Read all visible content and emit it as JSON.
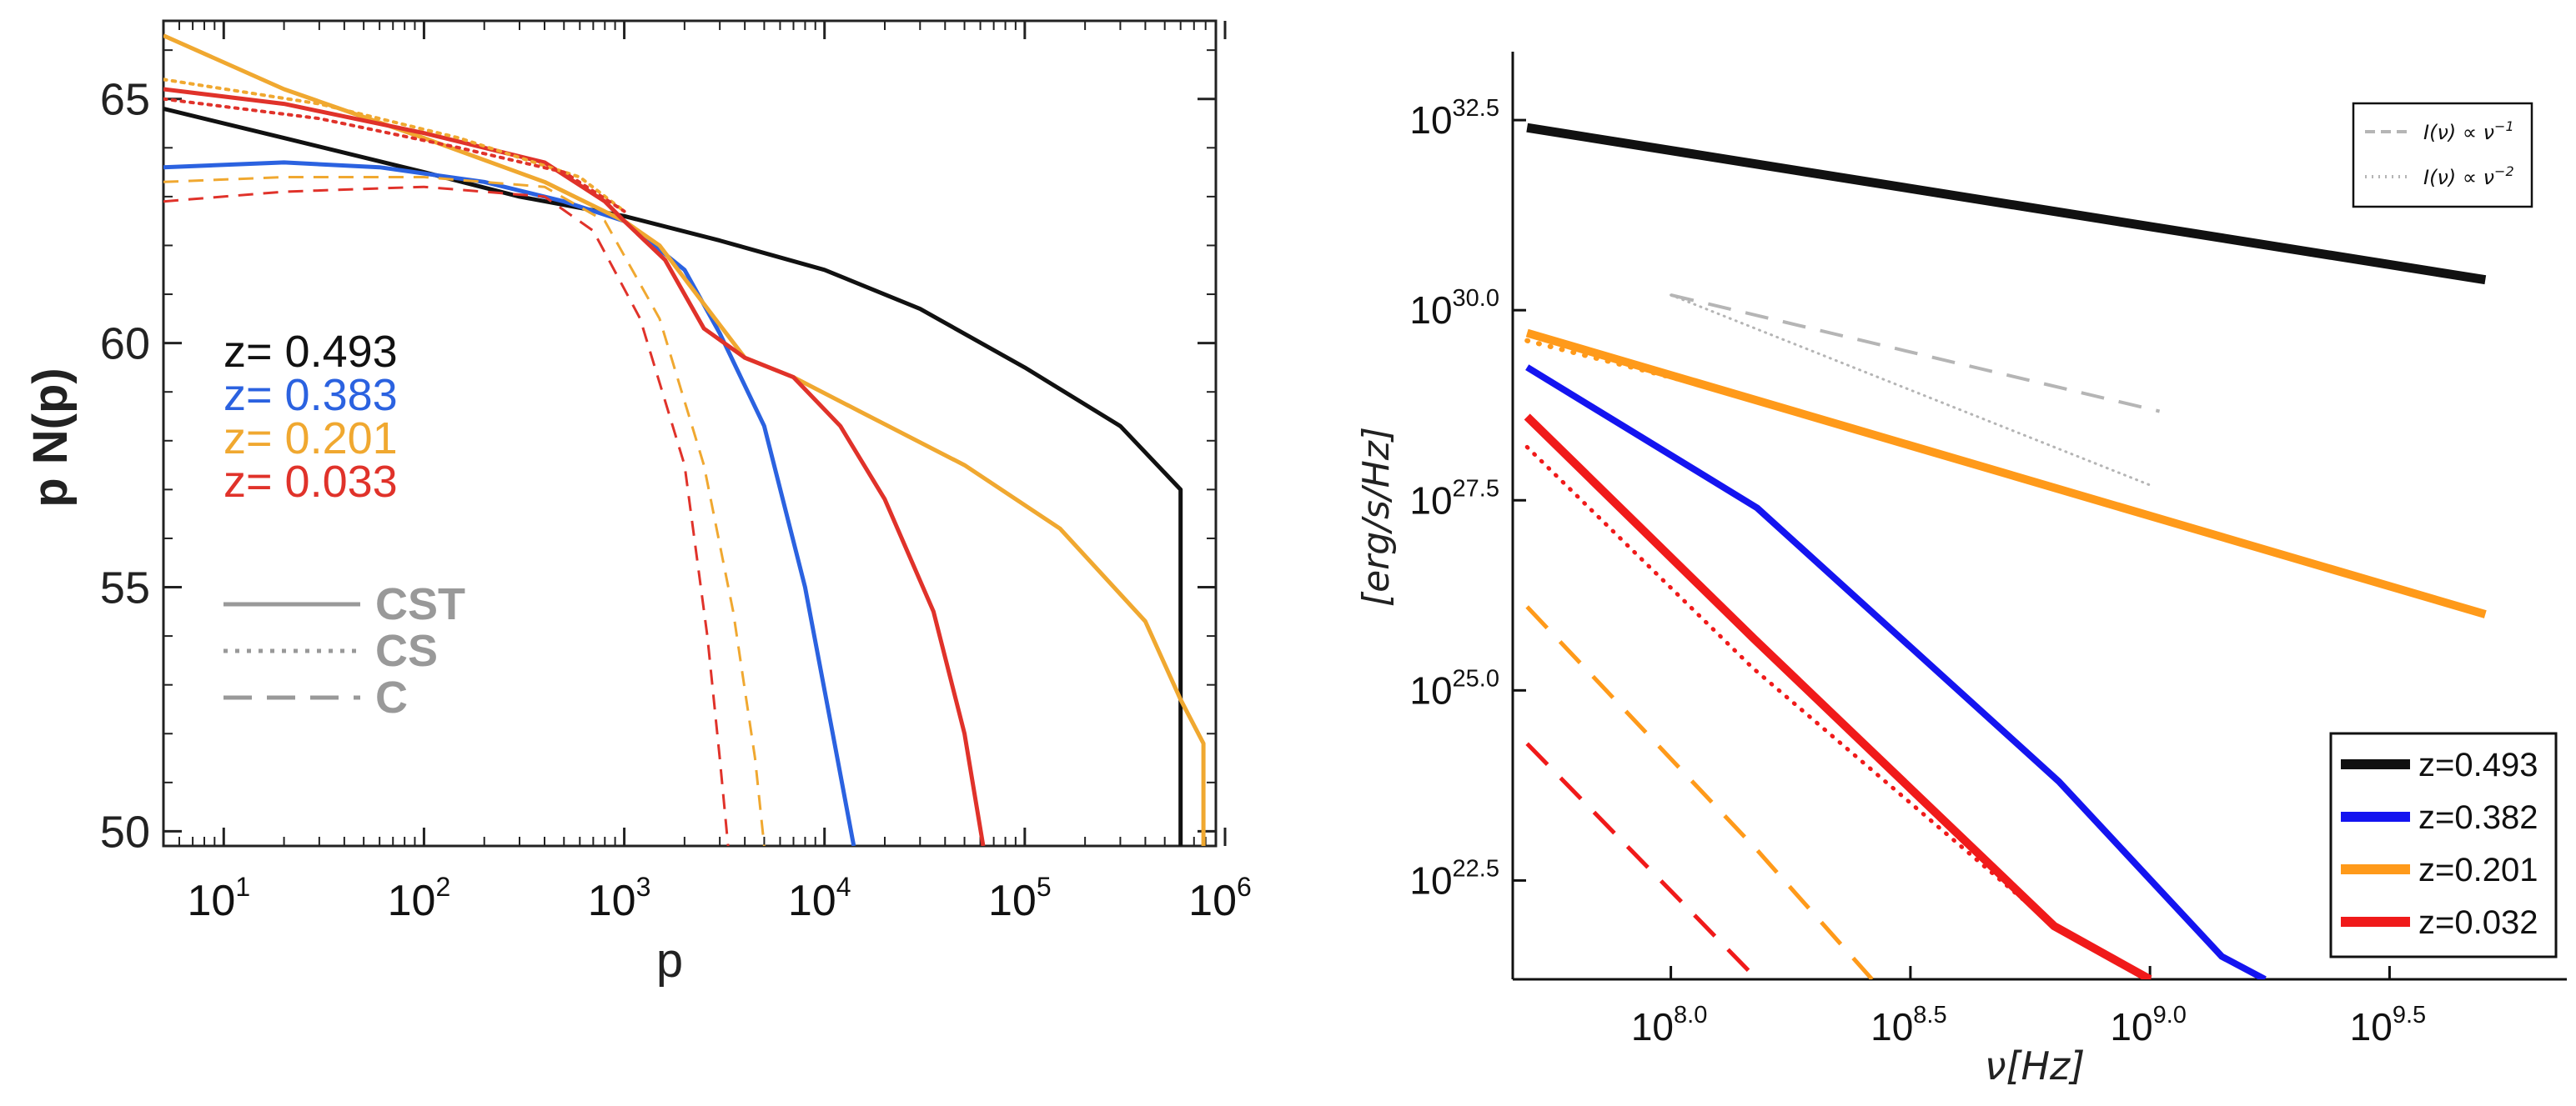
{
  "chart_data": [
    {
      "type": "line",
      "panel": "left",
      "xlabel": "p",
      "ylabel": "p N(p)",
      "xscale": "log",
      "xlim": [
        5,
        900000
      ],
      "ylim": [
        49.7,
        66.6
      ],
      "x_ticks": [
        {
          "v": 10,
          "base": "10",
          "exp": "1"
        },
        {
          "v": 100,
          "base": "10",
          "exp": "2"
        },
        {
          "v": 1000,
          "base": "10",
          "exp": "3"
        },
        {
          "v": 10000,
          "base": "10",
          "exp": "4"
        },
        {
          "v": 100000,
          "base": "10",
          "exp": "5"
        },
        {
          "v": 1000000,
          "base": "10",
          "exp": "6"
        }
      ],
      "y_ticks": [
        {
          "v": 50,
          "label": "50"
        },
        {
          "v": 55,
          "label": "55"
        },
        {
          "v": 60,
          "label": "60"
        },
        {
          "v": 65,
          "label": "65"
        }
      ],
      "z_legend": [
        {
          "label": "z= 0.493",
          "color": "#111111"
        },
        {
          "label": "z= 0.383",
          "color": "#2b62e0"
        },
        {
          "label": "z= 0.201",
          "color": "#f0a830"
        },
        {
          "label": "z= 0.033",
          "color": "#e0322a"
        }
      ],
      "style_legend": [
        {
          "label": "CST",
          "dash": "solid"
        },
        {
          "label": "CS",
          "dash": "dotted"
        },
        {
          "label": "C",
          "dash": "dashed"
        }
      ],
      "series": [
        {
          "name": "z= 0.493 CST",
          "color": "#111111",
          "dash": "solid",
          "width": 5,
          "points": [
            [
              5,
              64.8
            ],
            [
              20,
              64.2
            ],
            [
              100,
              63.5
            ],
            [
              300,
              63.0
            ],
            [
              1000,
              62.6
            ],
            [
              3000,
              62.1
            ],
            [
              10000,
              61.5
            ],
            [
              30000,
              60.7
            ],
            [
              100000,
              59.5
            ],
            [
              300000,
              58.3
            ],
            [
              600000,
              57.0
            ],
            [
              600000,
              49.7
            ]
          ]
        },
        {
          "name": "z= 0.383 CST",
          "color": "#2b62e0",
          "dash": "solid",
          "width": 5,
          "points": [
            [
              5,
              63.6
            ],
            [
              20,
              63.7
            ],
            [
              60,
              63.6
            ],
            [
              200,
              63.3
            ],
            [
              500,
              62.9
            ],
            [
              1000,
              62.5
            ],
            [
              2000,
              61.5
            ],
            [
              3000,
              60.2
            ],
            [
              5000,
              58.3
            ],
            [
              8000,
              55.0
            ],
            [
              11000,
              52.0
            ],
            [
              14000,
              49.7
            ]
          ]
        },
        {
          "name": "z= 0.201 CST",
          "color": "#f0a830",
          "dash": "solid",
          "width": 5,
          "points": [
            [
              5,
              66.3
            ],
            [
              20,
              65.2
            ],
            [
              100,
              64.2
            ],
            [
              400,
              63.3
            ],
            [
              1000,
              62.5
            ],
            [
              1500,
              62.0
            ],
            [
              2500,
              60.8
            ],
            [
              4000,
              59.7
            ],
            [
              7000,
              59.3
            ],
            [
              15000,
              58.6
            ],
            [
              50000,
              57.5
            ],
            [
              150000,
              56.2
            ],
            [
              400000,
              54.3
            ],
            [
              600000,
              52.7
            ],
            [
              780000,
              51.8
            ],
            [
              780000,
              49.7
            ]
          ]
        },
        {
          "name": "z= 0.033 CST",
          "color": "#e0322a",
          "dash": "solid",
          "width": 5,
          "points": [
            [
              5,
              65.2
            ],
            [
              20,
              64.9
            ],
            [
              100,
              64.3
            ],
            [
              400,
              63.7
            ],
            [
              800,
              62.9
            ],
            [
              1000,
              62.5
            ],
            [
              1600,
              61.7
            ],
            [
              2500,
              60.3
            ],
            [
              4000,
              59.7
            ],
            [
              7000,
              59.3
            ],
            [
              12000,
              58.3
            ],
            [
              20000,
              56.8
            ],
            [
              35000,
              54.5
            ],
            [
              50000,
              52.0
            ],
            [
              62000,
              49.7
            ]
          ]
        },
        {
          "name": "z= 0.201 CS",
          "color": "#f0a830",
          "dash": "dotted",
          "width": 4,
          "points": [
            [
              5,
              65.4
            ],
            [
              30,
              64.9
            ],
            [
              150,
              64.2
            ],
            [
              600,
              63.4
            ],
            [
              1000,
              62.7
            ]
          ]
        },
        {
          "name": "z= 0.033 CS",
          "color": "#e0322a",
          "dash": "dotted",
          "width": 4,
          "points": [
            [
              5,
              65.0
            ],
            [
              30,
              64.6
            ],
            [
              150,
              64.0
            ],
            [
              500,
              63.5
            ],
            [
              1000,
              62.7
            ]
          ]
        },
        {
          "name": "z= 0.201 C",
          "color": "#f0a830",
          "dash": "dashed",
          "width": 3,
          "points": [
            [
              5,
              63.3
            ],
            [
              20,
              63.4
            ],
            [
              100,
              63.4
            ],
            [
              400,
              63.2
            ],
            [
              800,
              62.5
            ],
            [
              1500,
              60.5
            ],
            [
              2500,
              57.5
            ],
            [
              3500,
              54.5
            ],
            [
              4500,
              51.5
            ],
            [
              5000,
              49.7
            ]
          ]
        },
        {
          "name": "z= 0.033 C",
          "color": "#e0322a",
          "dash": "dashed",
          "width": 3,
          "points": [
            [
              5,
              62.9
            ],
            [
              20,
              63.1
            ],
            [
              100,
              63.2
            ],
            [
              400,
              63.0
            ],
            [
              700,
              62.3
            ],
            [
              1200,
              60.5
            ],
            [
              2000,
              57.5
            ],
            [
              2600,
              54.0
            ],
            [
              3000,
              51.5
            ],
            [
              3300,
              49.7
            ]
          ]
        }
      ]
    },
    {
      "type": "line",
      "panel": "right",
      "xlabel": "ν[Hz]",
      "ylabel": "[erg/s/Hz]",
      "xscale": "log",
      "yscale": "log",
      "xlim": [
        7.67,
        9.87
      ],
      "ylim": [
        21.2,
        33.4
      ],
      "x_ticks": [
        {
          "v": 8.0,
          "base": "10",
          "exp": "8.0"
        },
        {
          "v": 8.5,
          "base": "10",
          "exp": "8.5"
        },
        {
          "v": 9.0,
          "base": "10",
          "exp": "9.0"
        },
        {
          "v": 9.5,
          "base": "10",
          "exp": "9.5"
        }
      ],
      "y_ticks": [
        {
          "v": 22.5,
          "base": "10",
          "exp": "22.5"
        },
        {
          "v": 25.0,
          "base": "10",
          "exp": "25.0"
        },
        {
          "v": 27.5,
          "base": "10",
          "exp": "27.5"
        },
        {
          "v": 30.0,
          "base": "10",
          "exp": "30.0"
        },
        {
          "v": 32.5,
          "base": "10",
          "exp": "32.5"
        }
      ],
      "legend": [
        {
          "label": "z=0.493",
          "color": "#111111"
        },
        {
          "label": "z=0.382",
          "color": "#1414f0"
        },
        {
          "label": "z=0.201",
          "color": "#ff9a1a"
        },
        {
          "label": "z=0.032",
          "color": "#f01a1a"
        }
      ],
      "ref_legend": [
        {
          "text": "I(ν) ∝ ν",
          "exp": "−1",
          "dash": "dashed"
        },
        {
          "text": "I(ν) ∝ ν",
          "exp": "−2",
          "dash": "dotted"
        }
      ],
      "series": [
        {
          "name": "z=0.493",
          "color": "#111111",
          "dash": "solid",
          "width": 11,
          "points": [
            [
              7.7,
              32.4
            ],
            [
              9.7,
              30.4
            ]
          ]
        },
        {
          "name": "z=0.382",
          "color": "#1414f0",
          "dash": "solid",
          "width": 8,
          "points": [
            [
              7.7,
              29.25
            ],
            [
              8.18,
              27.4
            ],
            [
              8.81,
              23.8
            ],
            [
              9.15,
              21.5
            ],
            [
              9.24,
              21.2
            ]
          ]
        },
        {
          "name": "z=0.201",
          "color": "#ff9a1a",
          "dash": "solid",
          "width": 10,
          "points": [
            [
              7.7,
              29.7
            ],
            [
              9.7,
              26.0
            ]
          ]
        },
        {
          "name": "z=0.201 dotted",
          "color": "#ff9a1a",
          "dash": "dotted",
          "width": 6,
          "points": [
            [
              7.7,
              29.6
            ],
            [
              8.2,
              28.8
            ]
          ]
        },
        {
          "name": "z=0.032",
          "color": "#f01a1a",
          "dash": "solid",
          "width": 10,
          "points": [
            [
              7.7,
              28.6
            ],
            [
              8.17,
              25.7
            ],
            [
              8.8,
              21.9
            ],
            [
              9.0,
              21.2
            ]
          ]
        },
        {
          "name": "z=0.032 dotted",
          "color": "#f01a1a",
          "dash": "dotted",
          "width": 5,
          "points": [
            [
              7.7,
              28.2
            ],
            [
              8.17,
              25.3
            ],
            [
              8.8,
              21.9
            ],
            [
              9.0,
              21.2
            ]
          ]
        },
        {
          "name": "z=0.201 dashed",
          "color": "#ff9a1a",
          "dash": "dashed",
          "width": 5,
          "points": [
            [
              7.7,
              26.1
            ],
            [
              8.18,
              22.9
            ],
            [
              8.42,
              21.2
            ]
          ]
        },
        {
          "name": "z=0.032 dashed",
          "color": "#f01a1a",
          "dash": "dashed",
          "width": 5,
          "points": [
            [
              7.7,
              24.3
            ],
            [
              8.18,
              21.2
            ]
          ]
        },
        {
          "name": "I ∝ ν^-1",
          "color": "#b5b5b5",
          "dash": "dashed",
          "width": 4,
          "points": [
            [
              8.0,
              30.2
            ],
            [
              9.02,
              28.67
            ]
          ]
        },
        {
          "name": "I ∝ ν^-2",
          "color": "#b5b5b5",
          "dash": "dotted",
          "width": 3,
          "points": [
            [
              8.0,
              30.2
            ],
            [
              9.0,
              27.7
            ]
          ]
        }
      ]
    }
  ]
}
